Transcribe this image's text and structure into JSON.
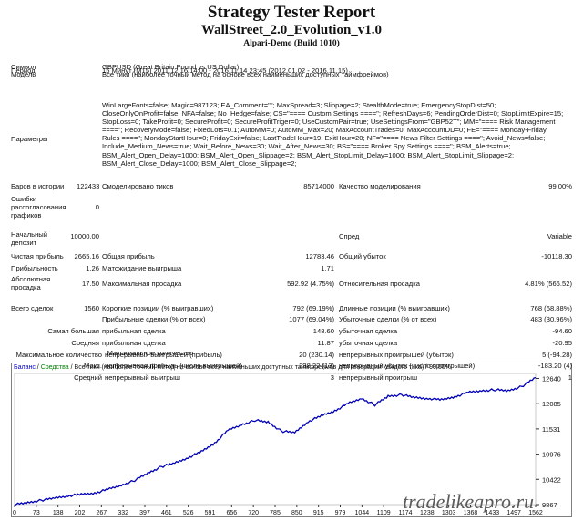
{
  "report": {
    "title": "Strategy Tester Report",
    "expert": "WallStreet_2.0_Evolution_v1.0",
    "server": "Alpari-Demo (Build 1010)"
  },
  "info": {
    "symbol_label": "Символ",
    "symbol_value": "GBPUSD (Great Britain Pound vs US Dollar)",
    "period_label": "Период",
    "period_value": "15 Минут (M15) 2011.12.16 14:00 - 2016.11.14 23:45 (2012.01.02 - 2016.11.15)",
    "model_label": "Модель",
    "model_value": "Все тики (наиболее точный метод на основе всех наименьших доступных таймфреймов)",
    "params_label": "Параметры",
    "params_value": "WinLargeFonts=false; Magic=987123; EA_Comment=\"\"; MaxSpread=3; Slippage=2; StealthMode=true; EmergencyStopDist=50; CloseOnlyOnProfit=false; NFA=false; No_Hedge=false; CS=\"==== Custom Settings ====\"; RefreshDays=6; PendingOrderDist=0; StopLimitExpire=15; StopLoss=0; TakeProfit=0; SecureProfit=0; SecureProfitTriger=0; UseCustomPair=true; UseSettingsFrom=\"GBP52T\"; MM=\"==== Risk Management ====\"; RecoveryMode=false; FixedLots=0.1; AutoMM=0; AutoMM_Max=20; MaxAccountTrades=0; MaxAccountDD=0; FE=\"==== Monday-Friday Rules ====\"; MondayStartHour=0; FridayExit=false; LastTradeHour=19; ExitHour=20; NF=\"==== News Filter Settings ====\"; Avoid_News=false; Include_Medium_News=true; Wait_Before_News=30; Wait_After_News=30; BS=\"==== Broker Spy Settings ====\"; BSM_Alerts=true; BSM_Alert_Open_Delay=1000; BSM_Alert_Open_Slippage=2; BSM_Alert_StopLimit_Delay=1000; BSM_Alert_StopLimit_Slippage=2; BSM_Alert_Close_Delay=1000; BSM_Alert_Close_Slippage=2;"
  },
  "stats": {
    "bars_label": "Баров в истории",
    "bars_value": "122433",
    "ticks_label": "Смоделировано тиков",
    "ticks_value": "85714000",
    "quality_label": "Качество моделирования",
    "quality_value": "99.00%",
    "errors_label": "Ошибки рассогласования графиков",
    "errors_value": "0",
    "deposit_label": "Начальный депозит",
    "deposit_value": "10000.00",
    "spread_label": "Спред",
    "spread_value": "Variable",
    "net_label": "Чистая прибыль",
    "net_value": "2665.16",
    "gross_profit_label": "Общая прибыль",
    "gross_profit_value": "12783.46",
    "gross_loss_label": "Общий убыток",
    "gross_loss_value": "-10118.30",
    "pf_label": "Прибыльность",
    "pf_value": "1.26",
    "expect_label": "Матожидание выигрыша",
    "expect_value": "1.71",
    "abs_dd_label": "Абсолютная просадка",
    "abs_dd_value": "17.50",
    "max_dd_label": "Максимальная просадка",
    "max_dd_value": "592.92 (4.75%)",
    "rel_dd_label": "Относительная просадка",
    "rel_dd_value": "4.81% (566.52)",
    "total_label": "Всего сделок",
    "total_value": "1560",
    "short_label": "Короткие позиции (% выигравших)",
    "short_value": "792 (69.19%)",
    "long_label": "Длинные позиции (% выигравших)",
    "long_value": "768 (68.88%)",
    "profit_trades_label": "Прибыльные сделки (% от всех)",
    "profit_trades_value": "1077 (69.04%)",
    "loss_trades_label": "Убыточные сделки (% от всех)",
    "loss_trades_value": "483 (30.96%)",
    "largest_a": "Самая большая",
    "largest_profit_label": "прибыльная сделка",
    "largest_profit_value": "148.60",
    "largest_loss_label": "убыточная сделка",
    "largest_loss_value": "-94.60",
    "avg_a": "Средняя",
    "avg_profit_label": "прибыльная сделка",
    "avg_profit_value": "11.87",
    "avg_loss_label": "убыточная сделка",
    "avg_loss_value": "-20.95",
    "maxcnt_a": "Максимальное количество",
    "maxcnt_win_label": "непрерывных выигрышей (прибыль)",
    "maxcnt_win_value": "20 (230.14)",
    "maxcnt_loss_label": "непрерывных проигрышей (убыток)",
    "maxcnt_loss_value": "5 (-94.28)",
    "maxamt_a": "Макс.",
    "maxamt_win_label": "непрерывная прибыль (число выигрышей)",
    "maxamt_win_value": "238.22 (13)",
    "maxamt_loss_label": "непрерывный убыток (число проигрышей)",
    "maxamt_loss_value": "-183.20 (4)",
    "avgcons_a": "Средний",
    "avgcons_win_label": "непрерывный выигрыш",
    "avgcons_win_value": "3",
    "avgcons_loss_label": "непрерывный проигрыш",
    "avgcons_loss_value": "1"
  },
  "chart_legend": {
    "balance": "Баланс",
    "equity": "Средства",
    "rest": "/ Все тики (наиболее точный метод на основе всех наименьших доступных таймфреймов для генерации каждого тика) / 99.00%"
  },
  "watermark": "tradelikeapro.ru",
  "colors": {
    "balance_line": "#0000b4",
    "border": "#808080",
    "grid": "#c8c8c8"
  },
  "chart_data": {
    "type": "line",
    "x_ticks": [
      "0",
      "73",
      "138",
      "202",
      "267",
      "332",
      "397",
      "461",
      "526",
      "591",
      "656",
      "720",
      "785",
      "850",
      "915",
      "979",
      "1044",
      "1109",
      "1174",
      "1238",
      "1303",
      "1368",
      "1433",
      "1497",
      "1562"
    ],
    "y_ticks": [
      9867,
      10422,
      10976,
      11531,
      12085,
      12640
    ],
    "ylim": [
      9867,
      12750
    ],
    "xlim": [
      0,
      1562
    ],
    "series": [
      {
        "x": [
          0,
          40,
          80,
          120,
          160,
          200,
          240,
          280,
          320,
          360,
          400,
          440,
          480,
          520,
          560,
          600,
          640,
          680,
          720,
          760,
          800,
          840,
          880,
          920,
          960,
          1000,
          1040,
          1080,
          1120,
          1160,
          1200,
          1240,
          1280,
          1320,
          1360,
          1400,
          1440,
          1480,
          1520,
          1562
        ],
        "y": [
          9867,
          9910,
          9960,
          10010,
          10060,
          10090,
          10120,
          10200,
          10290,
          10400,
          10560,
          10700,
          10780,
          10900,
          11030,
          11220,
          11500,
          11620,
          11720,
          11680,
          11480,
          11450,
          11690,
          11820,
          11930,
          12090,
          12200,
          12060,
          12250,
          12280,
          12220,
          12200,
          12170,
          12240,
          12330,
          12370,
          12390,
          12370,
          12460,
          12660
        ]
      }
    ]
  }
}
